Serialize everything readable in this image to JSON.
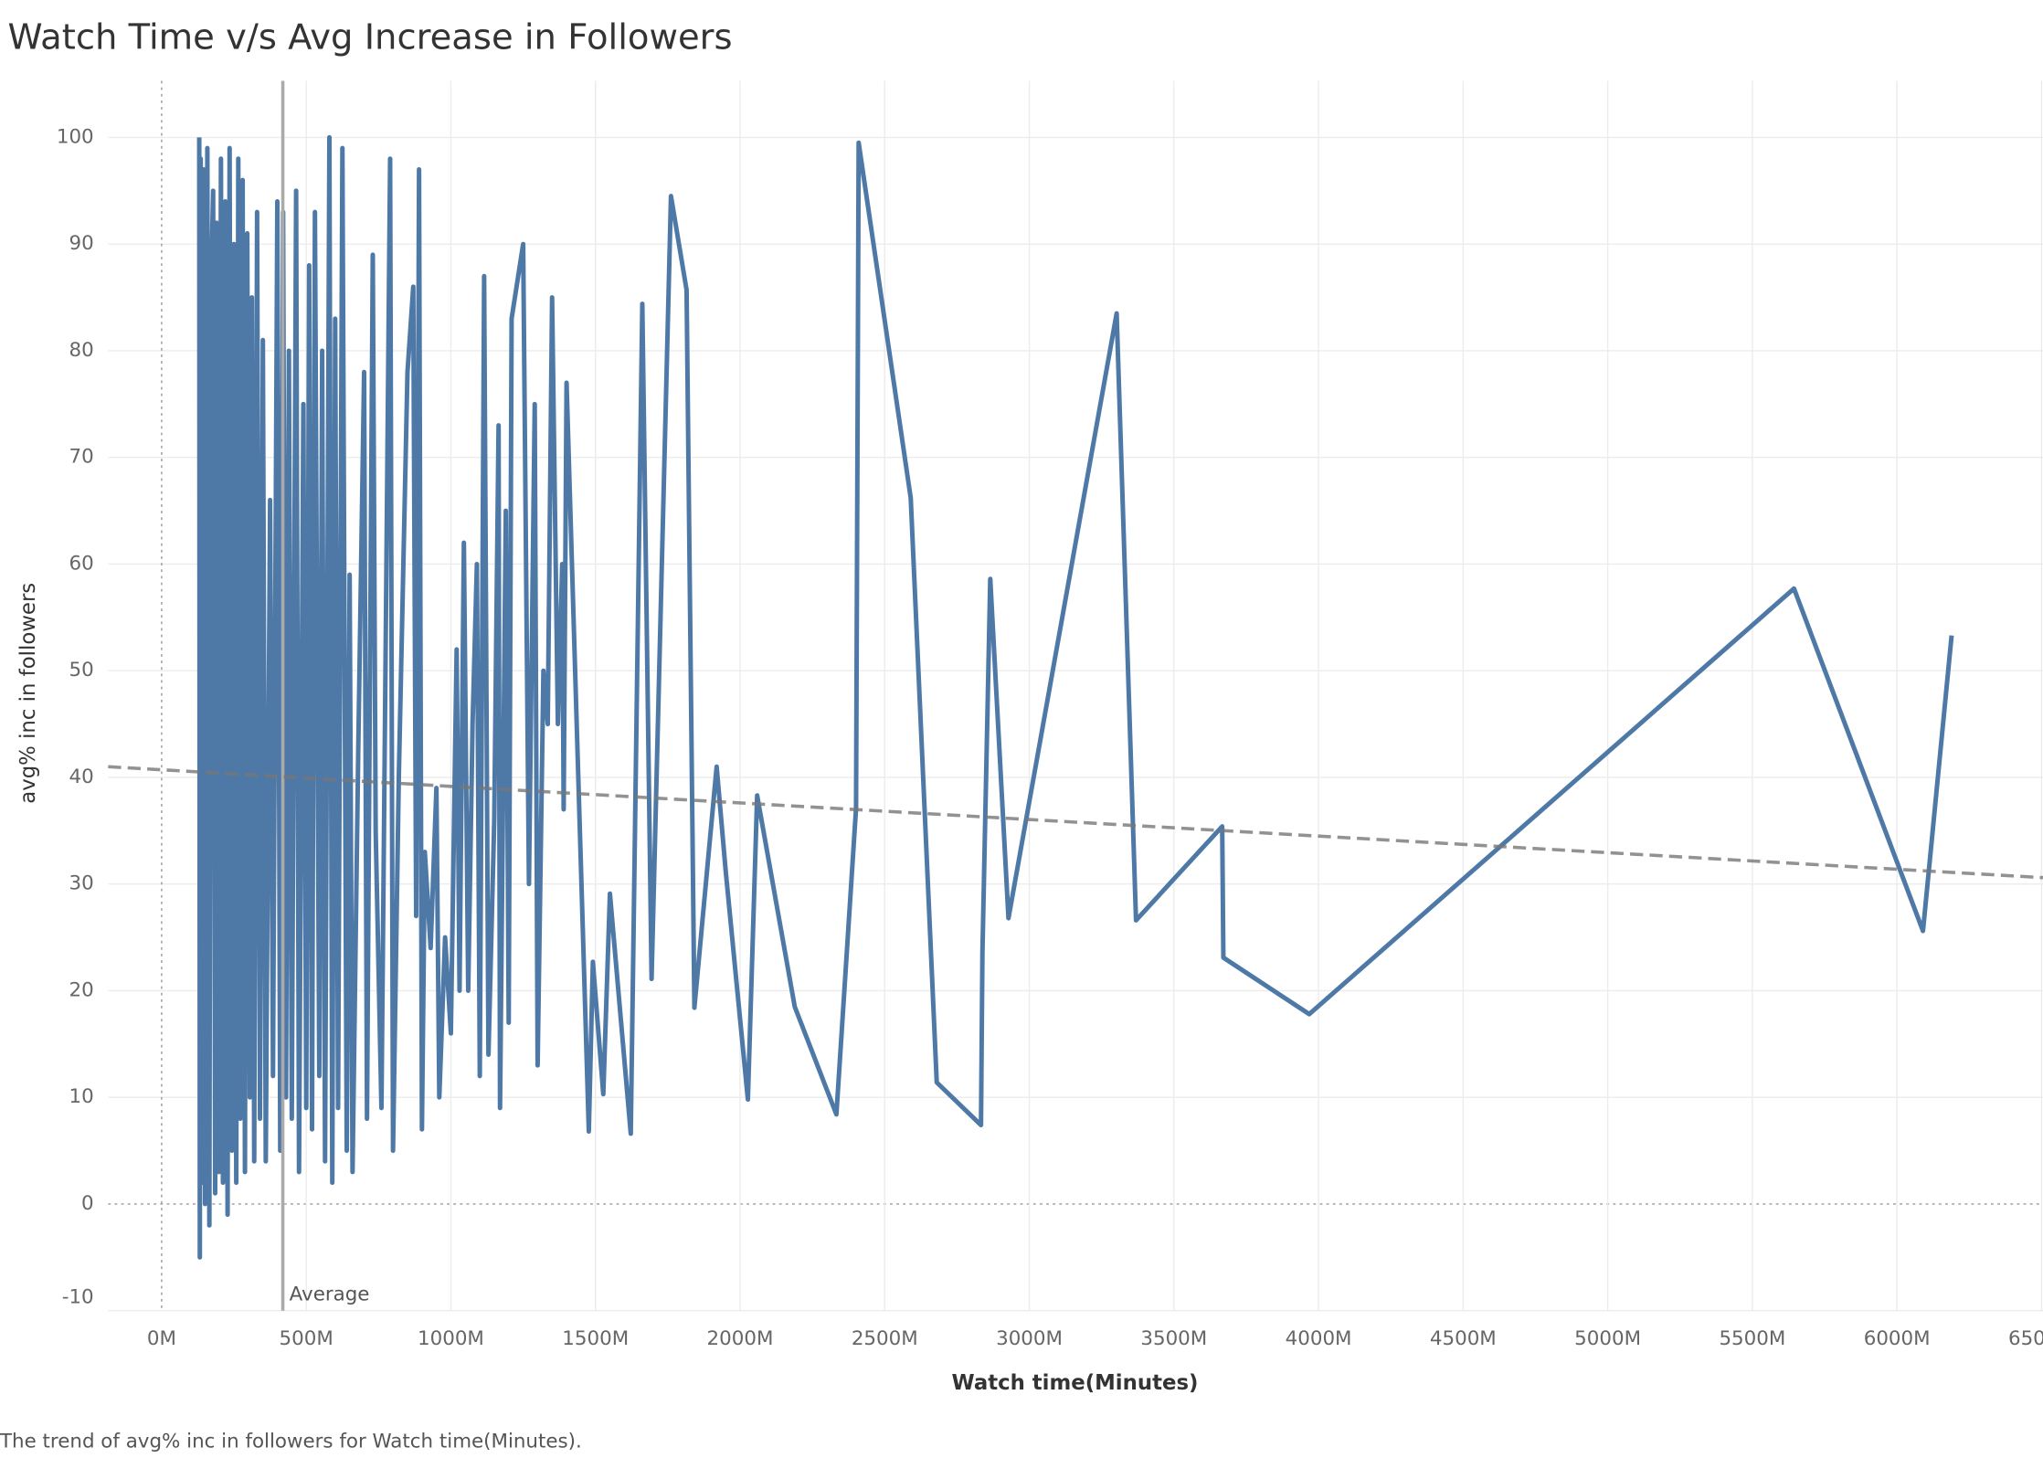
{
  "chart_data": {
    "type": "line",
    "title": "Watch Time v/s Avg Increase in Followers",
    "caption": "The trend of avg% inc in followers for Watch time(Minutes).",
    "x_label": "Watch time(Minutes)",
    "y_label": "avg% inc in followers",
    "color": "#4e79a7",
    "grid": true,
    "x": [
      130000000,
      132000000,
      135000000,
      140000000,
      145000000,
      150000000,
      158000000,
      165000000,
      170000000,
      178000000,
      185000000,
      190000000,
      198000000,
      205000000,
      212000000,
      220000000,
      228000000,
      235000000,
      243000000,
      250000000,
      258000000,
      265000000,
      272000000,
      280000000,
      288000000,
      296000000,
      305000000,
      312000000,
      320000000,
      330000000,
      340000000,
      350000000,
      360000000,
      375000000,
      385000000,
      400000000,
      410000000,
      420000000,
      430000000,
      440000000,
      450000000,
      465000000,
      475000000,
      490000000,
      500000000,
      510000000,
      520000000,
      530000000,
      545000000,
      555000000,
      565000000,
      580000000,
      590000000,
      600000000,
      610000000,
      625000000,
      640000000,
      650000000,
      660000000,
      680000000,
      700000000,
      710000000,
      730000000,
      740000000,
      760000000,
      790000000,
      800000000,
      820000000,
      850000000,
      870000000,
      880000000,
      890000000,
      900000000,
      910000000,
      930000000,
      950000000,
      960000000,
      980000000,
      1000000000,
      1020000000,
      1030000000,
      1045000000,
      1060000000,
      1075000000,
      1090000000,
      1100000000,
      1115000000,
      1130000000,
      1150000000,
      1165000000,
      1170000000,
      1190000000,
      1200000000,
      1210000000,
      1250000000,
      1270000000,
      1290000000,
      1300000000,
      1320000000,
      1335000000,
      1350000000,
      1370000000,
      1385000000,
      1390000000,
      1400000000,
      1477000000,
      1491000000,
      1527000000,
      1550000000,
      1622000000,
      1662000000,
      1694000000,
      1761000000,
      1815000000,
      1842000000,
      1919000000,
      1950000000,
      2027000000,
      2059000000,
      2189000000,
      2333000000,
      2401000000,
      2410000000,
      2590000000,
      2680000000,
      2833000000,
      2838000000,
      2865000000,
      2928000000,
      3302000000,
      3369000000,
      3667000000,
      3671000000,
      3968000000,
      5644000000,
      6090000000,
      6189000000
    ],
    "values": [
      100,
      -5,
      98,
      2,
      97,
      0,
      99,
      -2,
      85,
      95,
      1,
      92,
      3,
      98,
      2,
      94,
      -1,
      99,
      5,
      90,
      2,
      98,
      8,
      96,
      3,
      91,
      10,
      85,
      4,
      93,
      8,
      81,
      4,
      66,
      12,
      94,
      5,
      93,
      10,
      80,
      8,
      95,
      3,
      75,
      9,
      88,
      7,
      93,
      12,
      80,
      4,
      100,
      2,
      83,
      9,
      99,
      5,
      59,
      3,
      43,
      78,
      8,
      89,
      35,
      9,
      98,
      5,
      40,
      78,
      86,
      27,
      97,
      7,
      33,
      24,
      39,
      10,
      25,
      16,
      52,
      20,
      62,
      20,
      45,
      60,
      12,
      87,
      14,
      36,
      73,
      9,
      65,
      17,
      83,
      90,
      30,
      75,
      13,
      50,
      45,
      85,
      45,
      60,
      37,
      77,
      6.8,
      22.7,
      10.3,
      29.1,
      6.6,
      84.4,
      21.1,
      94.5,
      85.7,
      18.4,
      41.0,
      31.3,
      9.8,
      38.3,
      18.5,
      8.4,
      37.1,
      99.5,
      66.2,
      11.4,
      7.4,
      23.6,
      58.6,
      26.8,
      83.5,
      26.6,
      35.4,
      23.1,
      17.8,
      57.7,
      25.6,
      53.3
    ],
    "xlim": [
      -185000000,
      6505000000
    ],
    "ylim": [
      -10,
      105.3
    ],
    "xticks": [
      {
        "value": 0,
        "label": "0M"
      },
      {
        "value": 500000000,
        "label": "500M"
      },
      {
        "value": 1000000000,
        "label": "1000M"
      },
      {
        "value": 1500000000,
        "label": "1500M"
      },
      {
        "value": 2000000000,
        "label": "2000M"
      },
      {
        "value": 2500000000,
        "label": "2500M"
      },
      {
        "value": 3000000000,
        "label": "3000M"
      },
      {
        "value": 3500000000,
        "label": "3500M"
      },
      {
        "value": 4000000000,
        "label": "4000M"
      },
      {
        "value": 4500000000,
        "label": "4500M"
      },
      {
        "value": 5000000000,
        "label": "5000M"
      },
      {
        "value": 5500000000,
        "label": "5500M"
      },
      {
        "value": 6000000000,
        "label": "6000M"
      },
      {
        "value": 6500000000,
        "label": "6500M"
      }
    ],
    "yticks": [
      -10,
      0,
      10,
      20,
      30,
      40,
      50,
      60,
      70,
      80,
      90,
      100
    ],
    "average_line": {
      "label": "Average",
      "value": 419000000
    },
    "trend_line": {
      "x": [
        -185000000,
        6505000000
      ],
      "y": [
        41.0,
        30.6
      ]
    }
  }
}
